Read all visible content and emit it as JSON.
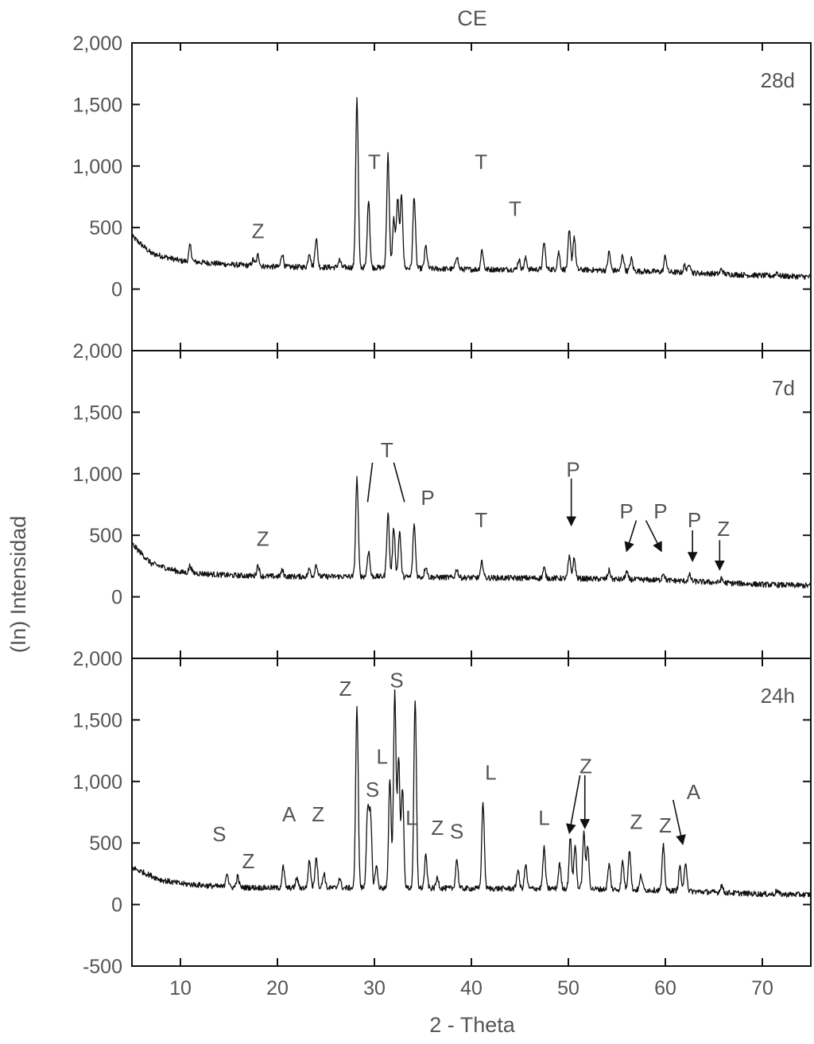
{
  "chart_data": {
    "type": "line",
    "title": "CE",
    "xlabel": "2 - Theta",
    "ylabel": "(In) Intensidad",
    "xlim": [
      5,
      75
    ],
    "xticks": [
      10,
      20,
      30,
      40,
      50,
      60,
      70
    ],
    "grid": false,
    "panels": [
      {
        "name": "28d",
        "ylim": [
          -500,
          2000
        ],
        "yticks": [
          {
            "v": 2000,
            "label": "2,000"
          },
          {
            "v": 1500,
            "label": "1,500"
          },
          {
            "v": 1000,
            "label": "1,000"
          },
          {
            "v": 500,
            "label": "500"
          },
          {
            "v": 0,
            "label": "0"
          }
        ],
        "baseline": [
          [
            5,
            430
          ],
          [
            7,
            290
          ],
          [
            10,
            230
          ],
          [
            15,
            200
          ],
          [
            20,
            180
          ],
          [
            30,
            175
          ],
          [
            40,
            160
          ],
          [
            50,
            160
          ],
          [
            60,
            140
          ],
          [
            70,
            110
          ],
          [
            75,
            100
          ]
        ],
        "peaks": [
          [
            11.0,
            130
          ],
          [
            17.5,
            50
          ],
          [
            18.0,
            90
          ],
          [
            20.5,
            110
          ],
          [
            23.3,
            120
          ],
          [
            24.0,
            240
          ],
          [
            26.4,
            60
          ],
          [
            28.2,
            1370
          ],
          [
            29.4,
            560
          ],
          [
            31.4,
            920
          ],
          [
            32.0,
            400
          ],
          [
            32.4,
            560
          ],
          [
            32.8,
            580
          ],
          [
            34.1,
            590
          ],
          [
            35.3,
            180
          ],
          [
            38.5,
            110
          ],
          [
            41.1,
            160
          ],
          [
            44.9,
            80
          ],
          [
            45.6,
            90
          ],
          [
            47.5,
            220
          ],
          [
            49.0,
            140
          ],
          [
            50.1,
            310
          ],
          [
            50.6,
            270
          ],
          [
            54.2,
            150
          ],
          [
            55.6,
            130
          ],
          [
            56.5,
            100
          ],
          [
            60.0,
            130
          ],
          [
            62.0,
            60
          ],
          [
            62.5,
            80
          ],
          [
            65.8,
            40
          ],
          [
            71.5,
            30
          ]
        ],
        "annotations": [
          {
            "text": "Z",
            "x": 18.0,
            "y": 480
          },
          {
            "text": "T",
            "x": 30.0,
            "y": 1040
          },
          {
            "text": "T",
            "x": 41.0,
            "y": 1040
          },
          {
            "text": "T",
            "x": 44.5,
            "y": 660
          }
        ],
        "pointers": []
      },
      {
        "name": "7d",
        "ylim": [
          -500,
          2000
        ],
        "yticks": [
          {
            "v": 2000,
            "label": "2,000"
          },
          {
            "v": 1500,
            "label": "1,500"
          },
          {
            "v": 1000,
            "label": "1,000"
          },
          {
            "v": 500,
            "label": "500"
          },
          {
            "v": 0,
            "label": "0"
          }
        ],
        "baseline": [
          [
            5,
            430
          ],
          [
            7,
            270
          ],
          [
            10,
            200
          ],
          [
            15,
            175
          ],
          [
            20,
            165
          ],
          [
            30,
            165
          ],
          [
            40,
            155
          ],
          [
            50,
            150
          ],
          [
            60,
            135
          ],
          [
            70,
            100
          ],
          [
            75,
            90
          ]
        ],
        "peaks": [
          [
            11.0,
            60
          ],
          [
            18.0,
            90
          ],
          [
            20.5,
            50
          ],
          [
            23.3,
            60
          ],
          [
            24.0,
            100
          ],
          [
            28.2,
            800
          ],
          [
            29.4,
            210
          ],
          [
            31.4,
            520
          ],
          [
            32.0,
            400
          ],
          [
            32.6,
            370
          ],
          [
            34.1,
            430
          ],
          [
            35.3,
            90
          ],
          [
            38.5,
            70
          ],
          [
            41.1,
            130
          ],
          [
            47.5,
            80
          ],
          [
            50.1,
            170
          ],
          [
            50.6,
            160
          ],
          [
            54.2,
            70
          ],
          [
            56.0,
            60
          ],
          [
            59.8,
            60
          ],
          [
            62.5,
            50
          ],
          [
            65.8,
            30
          ]
        ],
        "annotations": [
          {
            "text": "T",
            "x": 31.3,
            "y": 1200
          },
          {
            "text": "P",
            "x": 35.5,
            "y": 810
          },
          {
            "text": "T",
            "x": 41.0,
            "y": 630
          },
          {
            "text": "Z",
            "x": 18.5,
            "y": 480
          },
          {
            "text": "P",
            "x": 50.5,
            "y": 1040
          },
          {
            "text": "P",
            "x": 56.0,
            "y": 700
          },
          {
            "text": "P",
            "x": 59.5,
            "y": 700
          },
          {
            "text": "P",
            "x": 63.0,
            "y": 630
          },
          {
            "text": "Z",
            "x": 66.0,
            "y": 560
          }
        ],
        "pointers": [
          {
            "from": [
              29.8,
              1090
            ],
            "to": [
              29.3,
              770
            ],
            "arrow": false
          },
          {
            "from": [
              32.0,
              1090
            ],
            "to": [
              33.1,
              770
            ],
            "arrow": false
          },
          {
            "from": [
              50.3,
              960
            ],
            "to": [
              50.3,
              580
            ],
            "arrow": true
          },
          {
            "from": [
              57.0,
              620
            ],
            "to": [
              56.0,
              370
            ],
            "arrow": true
          },
          {
            "from": [
              58.0,
              620
            ],
            "to": [
              59.6,
              370
            ],
            "arrow": true
          },
          {
            "from": [
              62.8,
              540
            ],
            "to": [
              62.8,
              290
            ],
            "arrow": true
          },
          {
            "from": [
              65.6,
              460
            ],
            "to": [
              65.6,
              220
            ],
            "arrow": true
          }
        ]
      },
      {
        "name": "24h",
        "ylim": [
          -500,
          2000
        ],
        "yticks": [
          {
            "v": 2000,
            "label": "2,000"
          },
          {
            "v": 1500,
            "label": "1,500"
          },
          {
            "v": 1000,
            "label": "1,000"
          },
          {
            "v": 500,
            "label": "500"
          },
          {
            "v": 0,
            "label": "0"
          },
          {
            "v": -500,
            "label": "-500"
          }
        ],
        "baseline": [
          [
            5,
            300
          ],
          [
            8,
            200
          ],
          [
            10,
            170
          ],
          [
            15,
            140
          ],
          [
            20,
            135
          ],
          [
            30,
            135
          ],
          [
            40,
            130
          ],
          [
            50,
            130
          ],
          [
            60,
            115
          ],
          [
            70,
            85
          ],
          [
            75,
            80
          ]
        ],
        "peaks": [
          [
            14.8,
            120
          ],
          [
            15.9,
            90
          ],
          [
            20.6,
            170
          ],
          [
            22.0,
            80
          ],
          [
            23.3,
            220
          ],
          [
            24.0,
            260
          ],
          [
            24.8,
            120
          ],
          [
            26.4,
            80
          ],
          [
            28.2,
            1480
          ],
          [
            29.3,
            630
          ],
          [
            29.6,
            580
          ],
          [
            30.2,
            180
          ],
          [
            31.6,
            890
          ],
          [
            32.1,
            1590
          ],
          [
            32.5,
            1050
          ],
          [
            32.9,
            800
          ],
          [
            34.2,
            1520
          ],
          [
            35.3,
            260
          ],
          [
            36.5,
            90
          ],
          [
            38.5,
            240
          ],
          [
            41.2,
            700
          ],
          [
            44.8,
            150
          ],
          [
            45.6,
            190
          ],
          [
            47.5,
            330
          ],
          [
            49.1,
            200
          ],
          [
            50.2,
            410
          ],
          [
            50.7,
            350
          ],
          [
            51.6,
            450
          ],
          [
            52.0,
            340
          ],
          [
            54.2,
            200
          ],
          [
            55.6,
            230
          ],
          [
            56.3,
            330
          ],
          [
            57.5,
            120
          ],
          [
            59.8,
            360
          ],
          [
            61.5,
            200
          ],
          [
            62.1,
            240
          ],
          [
            65.8,
            60
          ],
          [
            71.5,
            30
          ]
        ],
        "annotations": [
          {
            "text": "Z",
            "x": 27.0,
            "y": 1760
          },
          {
            "text": "S",
            "x": 32.3,
            "y": 1830
          },
          {
            "text": "L",
            "x": 30.8,
            "y": 1210
          },
          {
            "text": "S",
            "x": 29.8,
            "y": 940
          },
          {
            "text": "L",
            "x": 33.8,
            "y": 710
          },
          {
            "text": "Z",
            "x": 36.5,
            "y": 630
          },
          {
            "text": "S",
            "x": 38.5,
            "y": 600
          },
          {
            "text": "L",
            "x": 42.0,
            "y": 1080
          },
          {
            "text": "L",
            "x": 47.5,
            "y": 710
          },
          {
            "text": "Z",
            "x": 51.8,
            "y": 1130
          },
          {
            "text": "A",
            "x": 21.2,
            "y": 740
          },
          {
            "text": "Z",
            "x": 24.2,
            "y": 740
          },
          {
            "text": "S",
            "x": 14.0,
            "y": 580
          },
          {
            "text": "Z",
            "x": 17.0,
            "y": 360
          },
          {
            "text": "Z",
            "x": 57.0,
            "y": 680
          },
          {
            "text": "Z",
            "x": 60.0,
            "y": 650
          },
          {
            "text": "A",
            "x": 62.9,
            "y": 920
          }
        ],
        "pointers": [
          {
            "from": [
              51.2,
              1050
            ],
            "to": [
              50.1,
              580
            ],
            "arrow": true
          },
          {
            "from": [
              51.7,
              1050
            ],
            "to": [
              51.7,
              620
            ],
            "arrow": true
          },
          {
            "from": [
              60.8,
              850
            ],
            "to": [
              61.8,
              490
            ],
            "arrow": true
          }
        ]
      }
    ]
  }
}
